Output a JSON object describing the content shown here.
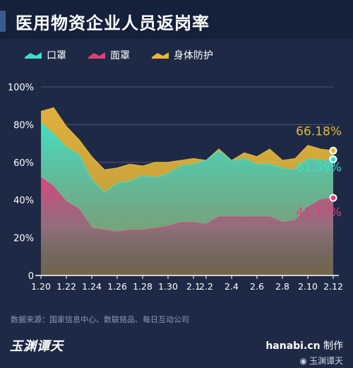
{
  "page": {
    "title": "医用物资企业人员返岗率",
    "source": "数据来源：国家信息中心、数联铭品、每日互动公司",
    "logo": "玉渊谭天",
    "site": "hanabi.cn",
    "made_by": "制作",
    "watermark": "玉渊谭天"
  },
  "colors": {
    "background": "#1e2a45",
    "header": "#15203a",
    "mask": "#3ee0c8",
    "face_mask": "#e0407a",
    "protective": "#e8b83a",
    "gridline": "#4a5878",
    "axis_text": "#ffffff"
  },
  "chart_data": {
    "type": "area",
    "title": "医用物资企业人员返岗率",
    "x": [
      "1.20",
      "1.21",
      "1.22",
      "1.23",
      "1.24",
      "1.25",
      "1.26",
      "1.27",
      "1.28",
      "1.29",
      "1.30",
      "1.31",
      "2.1",
      "2.2",
      "2.3",
      "2.4",
      "2.5",
      "2.6",
      "2.7",
      "2.8",
      "2.9",
      "2.10",
      "2.11",
      "2.12"
    ],
    "x_tick_labels": [
      "1.20",
      "1.22",
      "1.24",
      "1.26",
      "1.28",
      "1.30",
      "2.1",
      "2.2",
      "2.4",
      "2.6",
      "2.8",
      "2.10",
      "2.12"
    ],
    "y_tick_labels": [
      "0",
      "20%",
      "40%",
      "60%",
      "80%",
      "100%"
    ],
    "ylim": [
      0,
      100
    ],
    "grid": true,
    "legend": "top-left",
    "series": [
      {
        "name": "口罩",
        "color": "#3ee0c8",
        "values": [
          81,
          75,
          68,
          64,
          51,
          44,
          49,
          50,
          53,
          52,
          54,
          58,
          59,
          61,
          66,
          61,
          62,
          59,
          59,
          57,
          56,
          62,
          61,
          61.59
        ]
      },
      {
        "name": "面罩",
        "color": "#e0407a",
        "values": [
          52,
          47,
          39,
          35,
          25,
          24,
          23,
          24,
          24,
          25,
          26,
          28,
          28,
          27,
          31,
          31,
          31,
          31,
          31,
          28,
          29,
          36,
          40,
          41.17
        ]
      },
      {
        "name": "身体防护",
        "color": "#e8b83a",
        "values": [
          87,
          89,
          79,
          72,
          63,
          56,
          57,
          59,
          58,
          60,
          60,
          61,
          62,
          61,
          67,
          61,
          65,
          63,
          67,
          61,
          62,
          69,
          67,
          66.18
        ]
      }
    ],
    "end_labels": [
      {
        "series": "身体防护",
        "text": "66.18%"
      },
      {
        "series": "口罩",
        "text": "61.59%"
      },
      {
        "series": "面罩",
        "text": "41.17%"
      }
    ]
  }
}
